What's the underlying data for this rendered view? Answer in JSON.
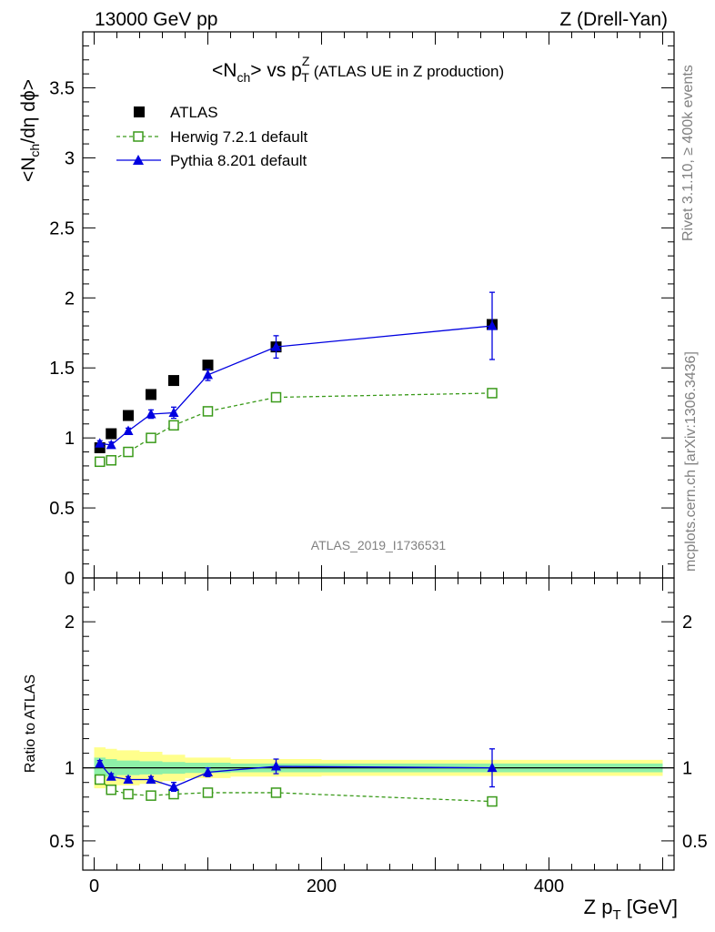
{
  "header": {
    "left": "13000 GeV pp",
    "right": "Z (Drell-Yan)"
  },
  "side_labels": {
    "rivet": "Rivet 3.1.10, ≥ 400k events",
    "mcplots": "mcplots.cern.ch [arXiv:1306.3436]"
  },
  "watermark": "ATLAS_2019_I1736531",
  "colors": {
    "atlas": "#000000",
    "herwig": "#3a9a1a",
    "pythia": "#0000e0",
    "band_inner": "#8ef0a8",
    "band_outer": "#ffff8c"
  },
  "chart_data": [
    {
      "type": "scatter",
      "title": {
        "prefix": "<N",
        "sub1": "ch",
        "mid": "> vs p",
        "sup": "Z",
        "sub2": "T",
        "suffix": " (ATLAS UE in Z production)"
      },
      "ylabel": {
        "a": "<N",
        "sub": "ch",
        "b": "/dη dϕ>"
      },
      "xlim": [
        -10,
        510
      ],
      "ylim": [
        0,
        3.9
      ],
      "yticks": [
        0,
        0.5,
        1,
        1.5,
        2,
        2.5,
        3,
        3.5
      ],
      "ytick_labels": [
        "0",
        "0.5",
        "1",
        "1.5",
        "2",
        "2.5",
        "3",
        "3.5"
      ],
      "legend_position": "top-left",
      "series": [
        {
          "name": "ATLAS",
          "style": "marker-square",
          "x": [
            5,
            15,
            30,
            50,
            70,
            100,
            160,
            350
          ],
          "y": [
            0.93,
            1.03,
            1.16,
            1.31,
            1.41,
            1.52,
            1.65,
            1.81
          ]
        },
        {
          "name": "Herwig 7.2.1 default",
          "style": "dashed-open-square",
          "x": [
            5,
            15,
            30,
            50,
            70,
            100,
            160,
            350
          ],
          "y": [
            0.83,
            0.84,
            0.9,
            1.0,
            1.09,
            1.19,
            1.29,
            1.32
          ],
          "err": [
            0,
            0,
            0,
            0,
            0,
            0,
            0,
            0.03
          ]
        },
        {
          "name": "Pythia 8.201 default",
          "style": "solid-triangle",
          "x": [
            5,
            15,
            30,
            50,
            70,
            100,
            160,
            350
          ],
          "y": [
            0.96,
            0.95,
            1.05,
            1.17,
            1.18,
            1.45,
            1.65,
            1.8
          ],
          "err": [
            0.02,
            0.02,
            0.02,
            0.03,
            0.04,
            0.04,
            0.08,
            0.24
          ]
        }
      ]
    },
    {
      "type": "line",
      "ylabel": "Ratio to ATLAS",
      "xlabel": {
        "a": "Z p",
        "sub": "T",
        "b": " [GeV]"
      },
      "xlim": [
        -10,
        510
      ],
      "xticks": [
        0,
        200,
        400
      ],
      "xtick_labels": [
        "0",
        "200",
        "400"
      ],
      "ylim": [
        0.3,
        2.3
      ],
      "yticks": [
        0.5,
        1,
        2
      ],
      "ytick_labels": [
        "0.5",
        "1",
        "2"
      ],
      "series": [
        {
          "name": "Herwig 7.2.1 default",
          "x": [
            5,
            15,
            30,
            50,
            70,
            100,
            160,
            350
          ],
          "y": [
            0.92,
            0.85,
            0.82,
            0.81,
            0.82,
            0.83,
            0.83,
            0.77
          ]
        },
        {
          "name": "Pythia 8.201 default",
          "x": [
            5,
            15,
            30,
            50,
            70,
            100,
            160,
            350
          ],
          "y": [
            1.03,
            0.94,
            0.92,
            0.92,
            0.87,
            0.97,
            1.01,
            1.0
          ],
          "err": [
            0.02,
            0.02,
            0.02,
            0.02,
            0.03,
            0.03,
            0.05,
            0.13
          ]
        }
      ],
      "band": {
        "x": [
          0,
          10,
          20,
          40,
          60,
          80,
          120,
          200,
          500
        ],
        "inner": [
          0.07,
          0.06,
          0.05,
          0.045,
          0.04,
          0.035,
          0.03,
          0.03,
          0.03
        ],
        "outer": [
          0.14,
          0.13,
          0.12,
          0.11,
          0.09,
          0.07,
          0.06,
          0.055,
          0.05
        ]
      }
    }
  ]
}
